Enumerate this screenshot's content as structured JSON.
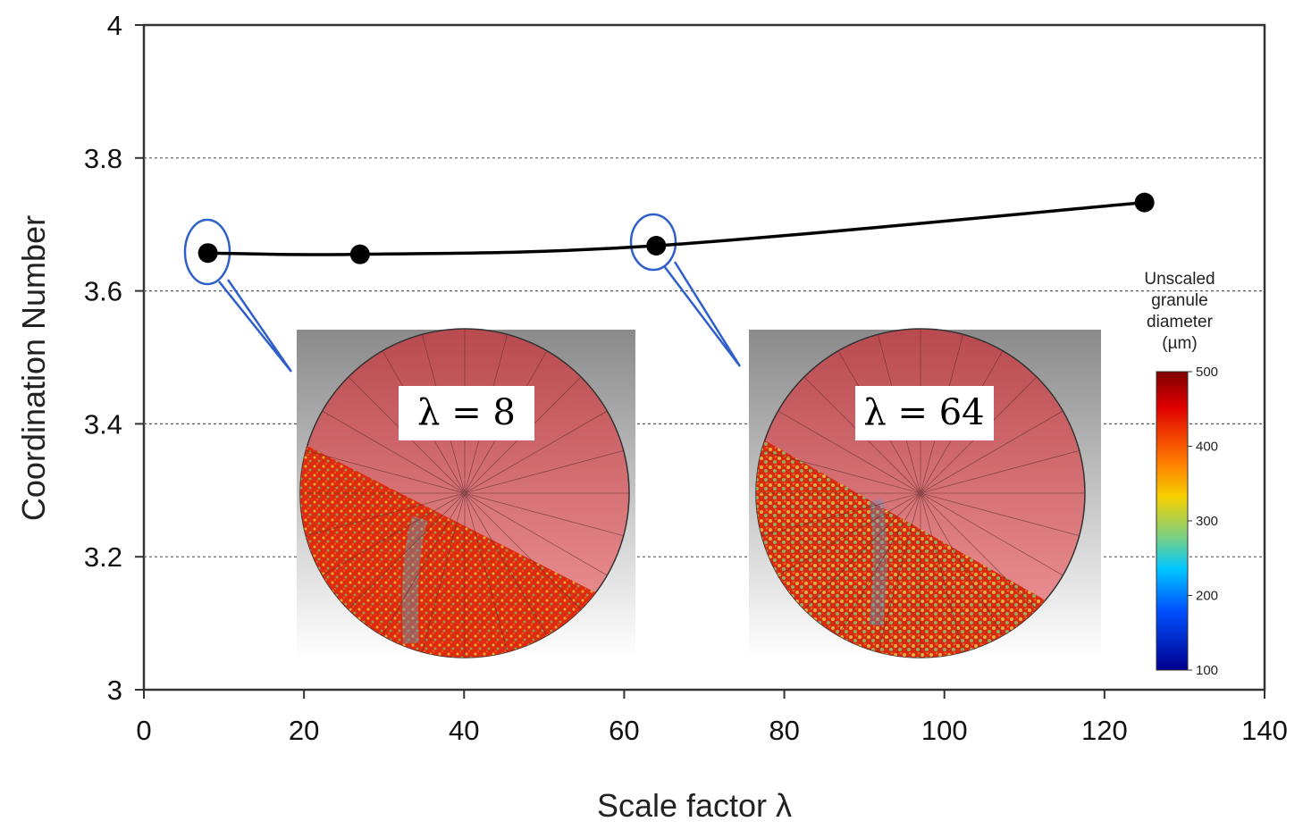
{
  "chart_data": {
    "type": "line",
    "xlabel": "Scale factor λ",
    "ylabel": "Coordination Number",
    "xlim": [
      0,
      140
    ],
    "ylim": [
      3,
      4
    ],
    "x_ticks": [
      "0",
      "20",
      "40",
      "60",
      "80",
      "100",
      "120",
      "140"
    ],
    "y_ticks": [
      "3",
      "3.2",
      "3.4",
      "3.6",
      "3.8",
      "4"
    ],
    "grid": "horizontal dashed",
    "series": [
      {
        "x": [
          8,
          27,
          64,
          125
        ],
        "y": [
          3.657,
          3.655,
          3.668,
          3.733
        ],
        "color": "#000000"
      }
    ],
    "insets": [
      {
        "label": "λ = 8",
        "highlight_x": 8,
        "highlight_y": 3.657
      },
      {
        "label": "λ = 64",
        "highlight_x": 64,
        "highlight_y": 3.668
      }
    ],
    "colorbar": {
      "title": [
        "Unscaled",
        "granule",
        "diameter",
        "(µm)"
      ],
      "ticks": [
        "500",
        "400",
        "300",
        "200",
        "100"
      ]
    }
  }
}
